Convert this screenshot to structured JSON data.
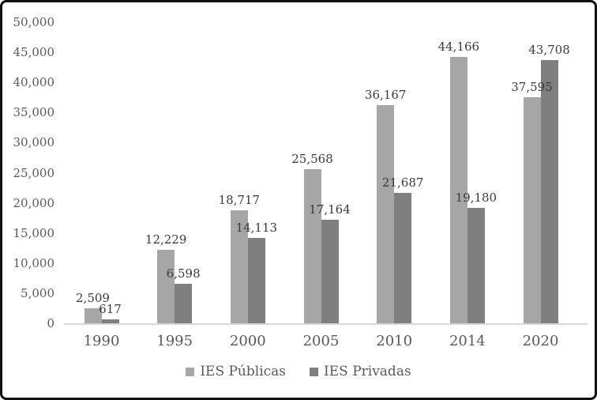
{
  "chart_data": {
    "type": "bar",
    "title": "",
    "categories": [
      "1990",
      "1995",
      "2000",
      "2005",
      "2010",
      "2014",
      "2020"
    ],
    "series": [
      {
        "name": "IES Públicas",
        "color": "#a6a6a6",
        "values": [
          2509,
          12229,
          18717,
          25568,
          36167,
          44166,
          37595
        ]
      },
      {
        "name": "IES Privadas",
        "color": "#7f7f7f",
        "values": [
          617,
          6598,
          14113,
          17164,
          21687,
          19180,
          43708
        ]
      }
    ],
    "data_labels": {
      "ies_publicas": [
        "2,509",
        "12,229",
        "18,717",
        "25,568",
        "36,167",
        "44,166",
        "37,595"
      ],
      "ies_privadas": [
        "617",
        "6,598",
        "14,113",
        "17,164",
        "21,687",
        "19,180",
        "43,708"
      ]
    },
    "y_axis": {
      "min": 0,
      "max": 50000,
      "step": 5000,
      "tick_labels": [
        "0",
        "5,000",
        "10,000",
        "15,000",
        "20,000",
        "25,000",
        "30,000",
        "35,000",
        "40,000",
        "45,000",
        "50,000"
      ]
    },
    "x_axis": {
      "tick_labels": [
        "1990",
        "1995",
        "2000",
        "2005",
        "2010",
        "2014",
        "2020"
      ]
    },
    "legend_position": "bottom",
    "grid": false,
    "colors": {
      "frame_border": "#111111",
      "axis_text": "#595959",
      "data_label_text": "#3a3a3a",
      "baseline": "#d9d9d9",
      "background": "#ffffff"
    }
  }
}
